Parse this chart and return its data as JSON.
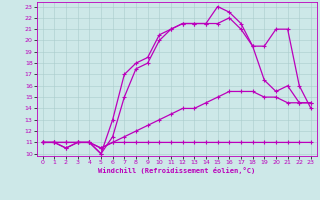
{
  "xlabel": "Windchill (Refroidissement éolien,°C)",
  "xlim": [
    0,
    23
  ],
  "ylim": [
    10,
    23
  ],
  "xticks": [
    0,
    1,
    2,
    3,
    4,
    5,
    6,
    7,
    8,
    9,
    10,
    11,
    12,
    13,
    14,
    15,
    16,
    17,
    18,
    19,
    20,
    21,
    22,
    23
  ],
  "yticks": [
    10,
    11,
    12,
    13,
    14,
    15,
    16,
    17,
    18,
    19,
    20,
    21,
    22,
    23
  ],
  "background_color": "#cde8e8",
  "grid_color": "#aacccc",
  "line_color": "#bb00bb",
  "curves": [
    {
      "x": [
        0,
        1,
        2,
        3,
        4,
        5,
        6,
        7,
        8,
        9,
        10,
        11,
        12,
        13,
        14,
        15,
        16,
        17,
        18,
        19,
        20,
        21,
        22,
        23
      ],
      "y": [
        11,
        11,
        11,
        11,
        11,
        10.5,
        11,
        11,
        11,
        11,
        11,
        11,
        11,
        11,
        11,
        11,
        11,
        11,
        11,
        11,
        11,
        11,
        11,
        11
      ]
    },
    {
      "x": [
        0,
        1,
        2,
        3,
        4,
        5,
        6,
        7,
        8,
        9,
        10,
        11,
        12,
        13,
        14,
        15,
        16,
        17,
        18,
        19,
        20,
        21,
        22,
        23
      ],
      "y": [
        11,
        11,
        11,
        11,
        11,
        10.5,
        11,
        11.5,
        12,
        12.5,
        13,
        13.5,
        14,
        14,
        14.5,
        15,
        15.5,
        15.5,
        15.5,
        15,
        15,
        14.5,
        14.5,
        14.5
      ]
    },
    {
      "x": [
        0,
        1,
        2,
        3,
        4,
        5,
        6,
        7,
        8,
        9,
        10,
        11,
        12,
        13,
        14,
        15,
        16,
        17,
        18,
        19,
        20,
        21,
        22,
        23
      ],
      "y": [
        11,
        11,
        10.5,
        11,
        11,
        10,
        13,
        17,
        18,
        18.5,
        20.5,
        21,
        21.5,
        21.5,
        21.5,
        23,
        22.5,
        21.5,
        19.5,
        16.5,
        15.5,
        16,
        14.5,
        14.5
      ]
    },
    {
      "x": [
        0,
        1,
        2,
        3,
        4,
        5,
        6,
        7,
        8,
        9,
        10,
        11,
        12,
        13,
        14,
        15,
        16,
        17,
        18,
        19,
        20,
        21,
        22,
        23
      ],
      "y": [
        11,
        11,
        10.5,
        11,
        11,
        10,
        11.5,
        15,
        17.5,
        18,
        20,
        21,
        21.5,
        21.5,
        21.5,
        21.5,
        22,
        21,
        19.5,
        19.5,
        21,
        21,
        16,
        14
      ]
    }
  ],
  "marker": "+",
  "markersize": 3.5,
  "linewidth": 0.9
}
